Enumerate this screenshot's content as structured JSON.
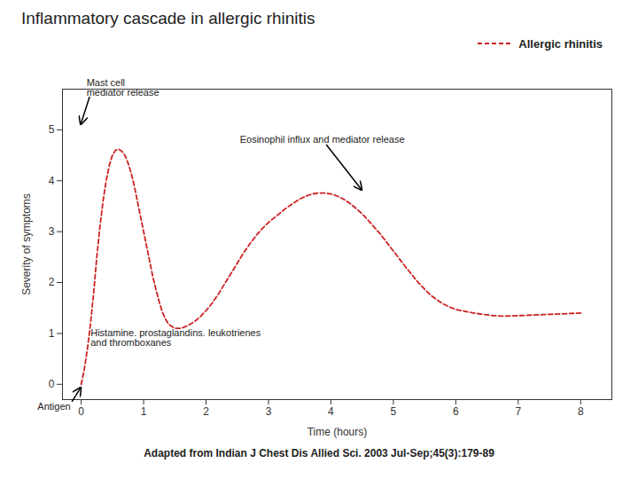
{
  "chart_data": {
    "type": "line",
    "title": "Inflammatory cascade in allergic rhinitis",
    "subtitle": "Adapted from Indian J Chest Dis Allied Sci. 2003 Jul-Sep;45(3):179-89",
    "xlabel": "Time (hours)",
    "ylabel": "Severity of symptoms",
    "x": [
      0.0,
      0.05,
      0.1,
      0.15,
      0.2,
      0.25,
      0.3,
      0.35,
      0.4,
      0.45,
      0.5,
      0.55,
      0.6,
      0.65,
      0.7,
      0.75,
      0.8,
      0.85,
      0.9,
      0.95,
      1.0,
      1.05,
      1.1,
      1.15,
      1.2,
      1.25,
      1.3,
      1.35,
      1.4,
      1.5,
      1.6,
      1.7,
      1.8,
      1.9,
      2.0,
      2.1,
      2.2,
      2.3,
      2.4,
      2.5,
      2.6,
      2.7,
      2.8,
      2.9,
      3.0,
      3.1,
      3.2,
      3.3,
      3.4,
      3.5,
      3.6,
      3.7,
      3.8,
      3.9,
      4.0,
      4.1,
      4.2,
      4.3,
      4.4,
      4.5,
      4.6,
      4.7,
      4.8,
      4.9,
      5.0,
      5.1,
      5.2,
      5.3,
      5.4,
      5.5,
      5.6,
      5.7,
      5.8,
      5.9,
      6.0,
      6.2,
      6.4,
      6.6,
      6.8,
      7.0,
      7.2,
      7.4,
      7.6,
      7.8,
      8.0
    ],
    "series": [
      {
        "name": "Allergic rhinitis",
        "color": "#cc2222",
        "line_style": "dashed",
        "values": [
          0.0,
          0.3,
          0.7,
          1.2,
          1.8,
          2.5,
          3.1,
          3.6,
          4.0,
          4.3,
          4.5,
          4.6,
          4.62,
          4.58,
          4.5,
          4.35,
          4.15,
          3.9,
          3.6,
          3.3,
          3.0,
          2.7,
          2.4,
          2.1,
          1.85,
          1.62,
          1.42,
          1.28,
          1.18,
          1.1,
          1.1,
          1.15,
          1.22,
          1.32,
          1.45,
          1.6,
          1.78,
          1.98,
          2.18,
          2.38,
          2.58,
          2.76,
          2.92,
          3.06,
          3.18,
          3.28,
          3.38,
          3.48,
          3.56,
          3.64,
          3.7,
          3.74,
          3.76,
          3.76,
          3.74,
          3.7,
          3.64,
          3.56,
          3.46,
          3.35,
          3.22,
          3.08,
          2.94,
          2.78,
          2.62,
          2.46,
          2.3,
          2.15,
          2.0,
          1.87,
          1.75,
          1.66,
          1.58,
          1.52,
          1.47,
          1.42,
          1.38,
          1.35,
          1.34,
          1.35,
          1.36,
          1.37,
          1.38,
          1.39,
          1.4
        ]
      }
    ],
    "xlim": [
      -0.3,
      8.5
    ],
    "ylim": [
      -0.3,
      5.8
    ],
    "xticks": [
      0,
      1,
      2,
      3,
      4,
      5,
      6,
      7,
      8
    ],
    "yticks": [
      0,
      1,
      2,
      3,
      4,
      5
    ],
    "annotations": [
      {
        "text": "Mast cell\nmediator release",
        "x": 0.0,
        "y": 5.05
      },
      {
        "text": "Histamine. prostaglandins. leukotrienes\nand thromboxanes",
        "x": 0.15,
        "y": 1.08
      },
      {
        "text": "Eosinophil influx and mediator release",
        "x": 4.5,
        "y": 3.76
      },
      {
        "text": "Antigen",
        "x": 0.0,
        "y": -0.02
      }
    ],
    "legend": "upper right",
    "grid": false
  }
}
